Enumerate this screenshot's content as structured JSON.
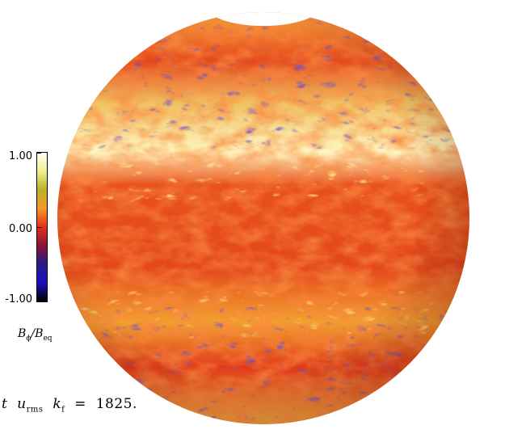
{
  "colorbar": {
    "ticks": [
      "1.00",
      "0.00",
      "-1.00"
    ],
    "label_main": "B",
    "label_sub_num": "ϕ",
    "label_slash": "/",
    "label_den": "B",
    "label_sub_den": "eq",
    "colors": [
      "#ffffff",
      "#f2f08a",
      "#b8b02a",
      "#f59a2a",
      "#e0301a",
      "#8a1438",
      "#2a1a8a",
      "#1a10c0",
      "#000000"
    ]
  },
  "caption": {
    "t": "t",
    "u": "u",
    "u_sub": "rms",
    "k": "k",
    "k_sub": "f",
    "equals": "=",
    "value": "1825."
  }
}
